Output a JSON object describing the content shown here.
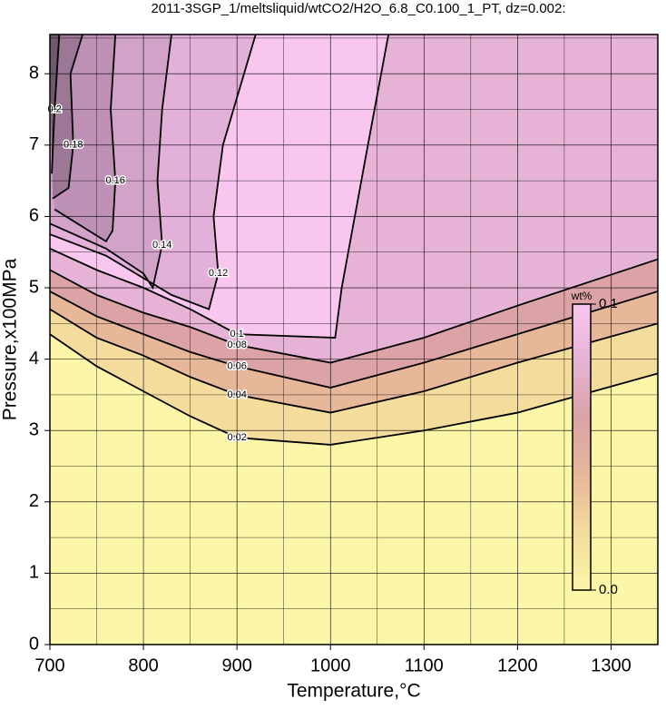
{
  "chart_data": {
    "type": "contour",
    "title": "2011-3SGP_1/meltsliquid/wtCO2/H2O_6.8_C0.100_1_PT, dz=0.002:",
    "x_label": "Temperature,°C",
    "y_label": "Pressure,x100MPa",
    "xlim": [
      700,
      1350
    ],
    "ylim": [
      0,
      8.55
    ],
    "xticks": [
      700,
      800,
      900,
      1000,
      1100,
      1200,
      1300
    ],
    "yticks": [
      0,
      1,
      2,
      3,
      4,
      5,
      6,
      7,
      8
    ],
    "xminor": [
      750,
      850,
      950,
      1050,
      1150,
      1250,
      1350
    ],
    "yminor": [
      0.5,
      1.5,
      2.5,
      3.5,
      4.5,
      5.5,
      6.5,
      7.5,
      8.5
    ],
    "grid": true,
    "background": "#fbf6a8",
    "contours": [
      {
        "level": 0.02,
        "fill": "#f4dd9c",
        "x": [
          700,
          750,
          800,
          850,
          900,
          1000,
          1100,
          1200,
          1350
        ],
        "y": [
          4.35,
          3.9,
          3.55,
          3.2,
          2.9,
          2.8,
          3.0,
          3.25,
          3.8
        ]
      },
      {
        "level": 0.04,
        "fill": "#e7b79a",
        "x": [
          700,
          750,
          800,
          850,
          900,
          1000,
          1100,
          1200,
          1350
        ],
        "y": [
          4.7,
          4.3,
          4.05,
          3.75,
          3.5,
          3.25,
          3.55,
          3.95,
          4.5
        ]
      },
      {
        "level": 0.06,
        "fill": "#dba3a6",
        "x": [
          700,
          750,
          800,
          850,
          900,
          1000,
          1100,
          1200,
          1350
        ],
        "y": [
          4.95,
          4.6,
          4.35,
          4.1,
          3.9,
          3.6,
          3.95,
          4.35,
          4.95
        ]
      },
      {
        "level": 0.08,
        "fill": "#e6b3d6",
        "x": [
          700,
          750,
          800,
          850,
          900,
          1000,
          1100,
          1200,
          1350
        ],
        "y": [
          5.25,
          4.9,
          4.65,
          4.45,
          4.2,
          3.95,
          4.3,
          4.75,
          5.4
        ]
      },
      {
        "level": 0.1,
        "fill": "#f8c6ee",
        "x": [
          700,
          750,
          800,
          850,
          900,
          1005,
          1012,
          1040,
          1062
        ],
        "y": [
          5.55,
          5.25,
          5.0,
          4.7,
          4.35,
          4.3,
          5.0,
          7.0,
          8.55
        ]
      },
      {
        "level": 0.12,
        "fill": "#e3b0d9",
        "x": [
          700,
          760,
          830,
          870,
          880,
          875,
          885,
          920
        ],
        "y": [
          5.75,
          5.45,
          4.9,
          4.7,
          5.2,
          6.0,
          7.0,
          8.55
        ]
      },
      {
        "level": 0.14,
        "fill": "#d3a2c9",
        "x": [
          700,
          760,
          800,
          810,
          820,
          815,
          820,
          830
        ],
        "y": [
          5.9,
          5.55,
          5.2,
          5.0,
          5.6,
          6.5,
          7.5,
          8.55
        ]
      },
      {
        "level": 0.16,
        "fill": "#bf90b5",
        "x": [
          705,
          760,
          767,
          770,
          765,
          770
        ],
        "y": [
          6.1,
          5.65,
          5.8,
          6.5,
          7.5,
          8.55
        ]
      },
      {
        "level": 0.18,
        "fill": "#9c7796",
        "x": [
          703,
          720,
          725,
          722,
          735
        ],
        "y": [
          6.25,
          6.4,
          7.0,
          8.0,
          8.55
        ]
      },
      {
        "level": 0.2,
        "fill": "#6e5a6c",
        "x": [
          702,
          705,
          710
        ],
        "y": [
          6.6,
          7.5,
          8.55
        ]
      }
    ],
    "colorbar": {
      "label": "wt%",
      "lim": [
        0,
        0.1
      ],
      "ticks": [
        {
          "value": 0,
          "label": "0.0"
        },
        {
          "value": 0.1,
          "label": "0.1"
        }
      ]
    }
  }
}
